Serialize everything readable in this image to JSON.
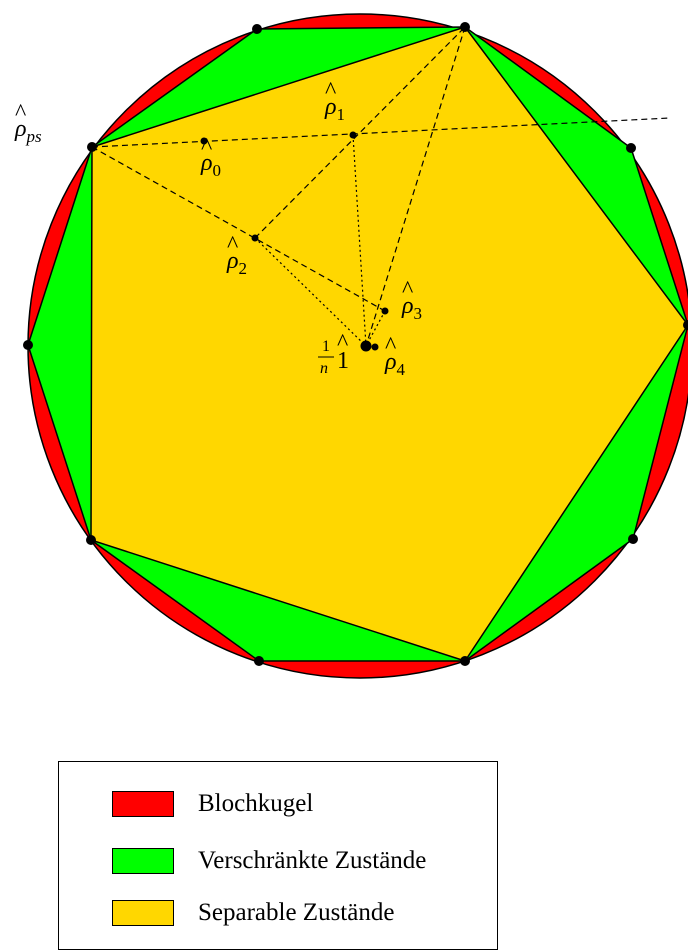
{
  "colors": {
    "bloch_ball": "#ff0000",
    "entangled": "#00ff00",
    "separable": "#ffd700",
    "line": "#000000",
    "background": "#ffffff"
  },
  "labels": {
    "rho_ps": {
      "base": "ρ",
      "hat": "^",
      "sub": "ps"
    },
    "rho_0": {
      "base": "ρ",
      "hat": "^",
      "sub": "0"
    },
    "rho_1": {
      "base": "ρ",
      "hat": "^",
      "sub": "1"
    },
    "rho_2": {
      "base": "ρ",
      "hat": "^",
      "sub": "2"
    },
    "rho_3": {
      "base": "ρ",
      "hat": "^",
      "sub": "3"
    },
    "rho_4": {
      "base": "ρ",
      "hat": "^",
      "sub": "4"
    },
    "identity": {
      "numerator": "1",
      "denominator": "n",
      "symbol": "1",
      "hat": "^"
    }
  },
  "legend": {
    "items": [
      {
        "label": "Blochkugel",
        "color_key": "bloch_ball"
      },
      {
        "label": "Verschränkte Zustände",
        "color_key": "entangled"
      },
      {
        "label": "Separable Zustände",
        "color_key": "separable"
      }
    ]
  }
}
